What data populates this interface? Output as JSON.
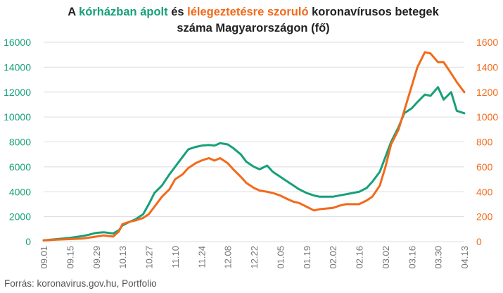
{
  "title": {
    "line1_prefix": "A ",
    "series1_phrase": "kórházban ápolt",
    "connector": " és ",
    "series2_phrase": "lélegeztetésre szoruló",
    "line1_suffix": " koronavírusos betegek",
    "line2": "száma Magyarországon  (fő)"
  },
  "source": "Forrás: koronavirus.gov.hu, Portfolio",
  "colors": {
    "series1": "#17a079",
    "series2": "#f26a1b",
    "grid": "#dcdcdc",
    "axis_text": "#777777"
  },
  "chart_data": {
    "type": "line",
    "title": "A kórházban ápolt és lélegeztetésre szoruló koronavírusos betegek száma Magyarországon  (fő)",
    "x_ticks": [
      "09.01",
      "09.15",
      "09.29",
      "10.13",
      "10.27",
      "11.10",
      "11.24",
      "12.08",
      "12.22",
      "01.05",
      "01.19",
      "02.02",
      "02.16",
      "03.02",
      "03.16",
      "03.30",
      "04.13"
    ],
    "y_left": {
      "ticks": [
        0,
        2000,
        4000,
        6000,
        8000,
        10000,
        12000,
        14000,
        16000
      ],
      "ylim": [
        0,
        16000
      ]
    },
    "y_right": {
      "ticks": [
        0,
        200,
        400,
        600,
        800,
        1000,
        1200,
        1400,
        1600
      ],
      "ylim": [
        0,
        1600
      ]
    },
    "grid": true,
    "series": [
      {
        "name": "kórházban ápolt",
        "axis": "left",
        "points": [
          [
            "09.01",
            100
          ],
          [
            "09.08",
            200
          ],
          [
            "09.15",
            300
          ],
          [
            "09.22",
            450
          ],
          [
            "09.25",
            550
          ],
          [
            "09.29",
            700
          ],
          [
            "10.03",
            750
          ],
          [
            "10.08",
            650
          ],
          [
            "10.11",
            900
          ],
          [
            "10.13",
            1300
          ],
          [
            "10.17",
            1600
          ],
          [
            "10.20",
            1800
          ],
          [
            "10.24",
            2200
          ],
          [
            "10.27",
            3000
          ],
          [
            "10.30",
            3900
          ],
          [
            "11.03",
            4500
          ],
          [
            "11.07",
            5400
          ],
          [
            "11.10",
            6000
          ],
          [
            "11.14",
            6800
          ],
          [
            "11.17",
            7400
          ],
          [
            "11.21",
            7600
          ],
          [
            "11.24",
            7700
          ],
          [
            "11.28",
            7750
          ],
          [
            "12.01",
            7700
          ],
          [
            "12.04",
            7900
          ],
          [
            "12.08",
            7800
          ],
          [
            "12.11",
            7500
          ],
          [
            "12.15",
            7000
          ],
          [
            "12.18",
            6400
          ],
          [
            "12.22",
            6000
          ],
          [
            "12.25",
            5800
          ],
          [
            "12.29",
            6100
          ],
          [
            "01.01",
            5600
          ],
          [
            "01.05",
            5200
          ],
          [
            "01.09",
            4800
          ],
          [
            "01.12",
            4500
          ],
          [
            "01.15",
            4200
          ],
          [
            "01.19",
            3900
          ],
          [
            "01.23",
            3700
          ],
          [
            "01.26",
            3600
          ],
          [
            "02.02",
            3600
          ],
          [
            "02.09",
            3800
          ],
          [
            "02.16",
            4000
          ],
          [
            "02.20",
            4300
          ],
          [
            "02.23",
            4800
          ],
          [
            "02.27",
            5600
          ],
          [
            "03.02",
            6800
          ],
          [
            "03.05",
            8000
          ],
          [
            "03.09",
            9200
          ],
          [
            "03.12",
            10300
          ],
          [
            "03.16",
            10700
          ],
          [
            "03.19",
            11200
          ],
          [
            "03.23",
            11800
          ],
          [
            "03.26",
            11700
          ],
          [
            "03.30",
            12400
          ],
          [
            "04.02",
            11400
          ],
          [
            "04.06",
            12000
          ],
          [
            "04.09",
            10500
          ],
          [
            "04.13",
            10300
          ]
        ]
      },
      {
        "name": "lélegeztetésre szoruló",
        "axis": "right",
        "points": [
          [
            "09.01",
            10
          ],
          [
            "09.08",
            15
          ],
          [
            "09.15",
            20
          ],
          [
            "09.22",
            25
          ],
          [
            "09.29",
            40
          ],
          [
            "10.03",
            50
          ],
          [
            "10.08",
            40
          ],
          [
            "10.11",
            80
          ],
          [
            "10.13",
            140
          ],
          [
            "10.17",
            160
          ],
          [
            "10.20",
            170
          ],
          [
            "10.24",
            190
          ],
          [
            "10.27",
            220
          ],
          [
            "10.30",
            280
          ],
          [
            "11.03",
            360
          ],
          [
            "11.07",
            420
          ],
          [
            "11.10",
            500
          ],
          [
            "11.14",
            540
          ],
          [
            "11.17",
            590
          ],
          [
            "11.21",
            630
          ],
          [
            "11.24",
            650
          ],
          [
            "11.28",
            670
          ],
          [
            "12.01",
            650
          ],
          [
            "12.04",
            670
          ],
          [
            "12.08",
            630
          ],
          [
            "12.11",
            580
          ],
          [
            "12.15",
            520
          ],
          [
            "12.18",
            470
          ],
          [
            "12.22",
            430
          ],
          [
            "12.25",
            410
          ],
          [
            "12.29",
            400
          ],
          [
            "01.01",
            390
          ],
          [
            "01.05",
            370
          ],
          [
            "01.09",
            340
          ],
          [
            "01.12",
            320
          ],
          [
            "01.15",
            310
          ],
          [
            "01.19",
            280
          ],
          [
            "01.23",
            250
          ],
          [
            "01.26",
            260
          ],
          [
            "02.02",
            270
          ],
          [
            "02.06",
            290
          ],
          [
            "02.09",
            300
          ],
          [
            "02.16",
            300
          ],
          [
            "02.20",
            330
          ],
          [
            "02.23",
            360
          ],
          [
            "02.27",
            450
          ],
          [
            "03.02",
            600
          ],
          [
            "03.05",
            780
          ],
          [
            "03.09",
            900
          ],
          [
            "03.12",
            1050
          ],
          [
            "03.16",
            1250
          ],
          [
            "03.19",
            1400
          ],
          [
            "03.23",
            1520
          ],
          [
            "03.26",
            1510
          ],
          [
            "03.30",
            1440
          ],
          [
            "04.02",
            1440
          ],
          [
            "04.06",
            1350
          ],
          [
            "04.09",
            1280
          ],
          [
            "04.13",
            1200
          ]
        ]
      }
    ]
  }
}
